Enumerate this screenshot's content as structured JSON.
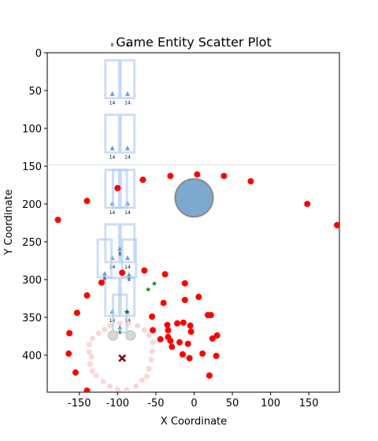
{
  "chart_data": {
    "type": "scatter",
    "title": "Game Entity Scatter Plot",
    "xlabel": "X Coordinate",
    "ylabel": "Y Coordinate",
    "xlim": [
      -192,
      190
    ],
    "ylim": [
      449,
      0
    ],
    "y_inverted": true,
    "grid": false,
    "x_ticks": [
      -150,
      -100,
      -50,
      0,
      50,
      100,
      150
    ],
    "y_ticks": [
      0,
      50,
      100,
      150,
      200,
      250,
      300,
      350,
      400
    ],
    "horizontal_line_y": 148,
    "big_circle": {
      "x": 0,
      "y": 192,
      "color": "#7ea9cf"
    },
    "red_points": [
      [
        -178,
        221
      ],
      [
        -140,
        196
      ],
      [
        -100,
        179
      ],
      [
        -67,
        168
      ],
      [
        -31,
        163
      ],
      [
        4,
        161
      ],
      [
        39,
        163
      ],
      [
        74,
        170
      ],
      [
        148,
        200
      ],
      [
        187,
        228
      ],
      [
        -121,
        304
      ],
      [
        -94,
        291
      ],
      [
        -65,
        288
      ],
      [
        -38,
        293
      ],
      [
        -12,
        305
      ],
      [
        -140,
        321
      ],
      [
        -153,
        344
      ],
      [
        -163,
        371
      ],
      [
        -164,
        398
      ],
      [
        -155,
        423
      ],
      [
        -140,
        447
      ],
      [
        -55,
        349
      ],
      [
        -54,
        367
      ],
      [
        -40,
        331
      ],
      [
        -12,
        327
      ],
      [
        -35,
        360
      ],
      [
        -31,
        381
      ],
      [
        -29,
        389
      ],
      [
        -44,
        379
      ],
      [
        -22,
        358
      ],
      [
        -14,
        357
      ],
      [
        -5,
        361
      ],
      [
        -4,
        369
      ],
      [
        -19,
        383
      ],
      [
        -8,
        385
      ],
      [
        -15,
        399
      ],
      [
        -6,
        404
      ],
      [
        -34,
        367
      ],
      [
        -34,
        376
      ],
      [
        6,
        323
      ],
      [
        18,
        347
      ],
      [
        22,
        347
      ],
      [
        24,
        378
      ],
      [
        30,
        374
      ],
      [
        29,
        401
      ],
      [
        11,
        398
      ],
      [
        20,
        427
      ]
    ],
    "pink_circle_points": [
      [
        -125,
        371
      ],
      [
        -133,
        378
      ],
      [
        -137,
        386
      ],
      [
        -137,
        396
      ],
      [
        -134,
        402
      ],
      [
        -136,
        412
      ],
      [
        -133,
        421
      ],
      [
        -128,
        427
      ],
      [
        -119,
        435
      ],
      [
        -110,
        441
      ],
      [
        -100,
        445
      ],
      [
        -88,
        446
      ],
      [
        -76,
        441
      ],
      [
        -68,
        433
      ],
      [
        -62,
        428
      ],
      [
        -59,
        418
      ],
      [
        -56,
        406
      ],
      [
        -55,
        395
      ],
      [
        -54,
        383
      ],
      [
        -59,
        374
      ],
      [
        -65,
        367
      ],
      [
        -74,
        361
      ],
      [
        -86,
        358
      ],
      [
        -97,
        358
      ],
      [
        -110,
        361
      ],
      [
        -117,
        366
      ]
    ],
    "gray_points": [
      [
        -106,
        374
      ],
      [
        -83,
        374
      ]
    ],
    "dark_red_x": [
      -94,
      404
    ],
    "green_stars": [
      [
        -52,
        305
      ],
      [
        -60,
        313
      ],
      [
        -88,
        343
      ]
    ],
    "rect_columns": [
      {
        "x": -107,
        "tops": [
          10,
          82,
          155,
          227,
          298
        ],
        "height": 50,
        "width": 18,
        "labels": [
          14,
          14,
          14,
          14,
          14
        ]
      },
      {
        "x": -87,
        "tops": [
          10,
          82,
          155,
          227,
          298
        ],
        "height": 50,
        "width": 18,
        "labels": [
          14,
          14,
          14,
          14,
          14
        ]
      }
    ],
    "small_rects": [
      {
        "x": -97,
        "top": 155,
        "labels": 8,
        "ly": 268
      },
      {
        "x": -117,
        "top": 247,
        "labels": 8,
        "ly": 301
      },
      {
        "x": -85,
        "top": 247,
        "labels": 8,
        "ly": 302
      },
      {
        "x": -97,
        "top": 320,
        "labels": 8,
        "ly": 372
      }
    ],
    "top_labels": [
      "8",
      "8"
    ]
  }
}
